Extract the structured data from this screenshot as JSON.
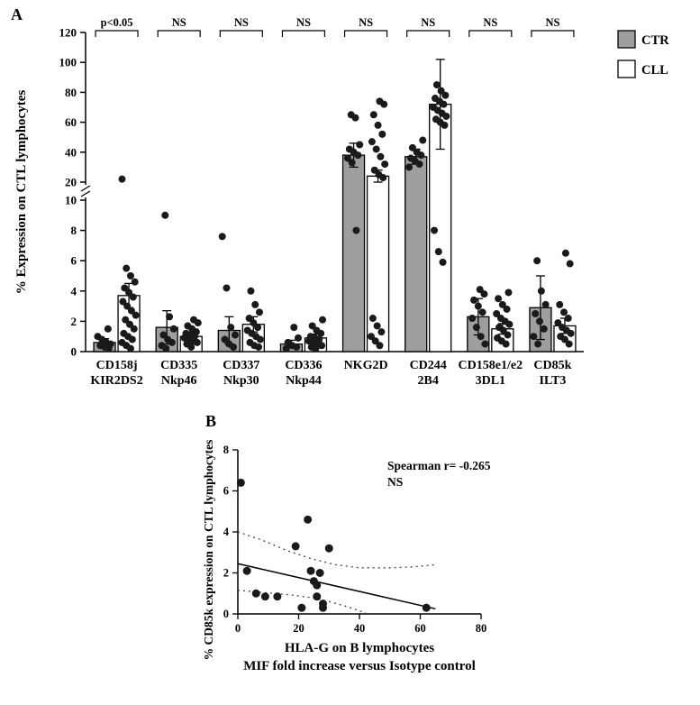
{
  "figure": {
    "panel_a_label": "A",
    "panel_b_label": "B"
  },
  "colors": {
    "ctr_fill": "#9e9e9e",
    "cll_fill": "#ffffff",
    "bar_stroke": "#000000",
    "dot_color": "#1a1a1a",
    "axis_color": "#000000",
    "ci_color": "#444444"
  },
  "chart_data": [
    {
      "id": "panelA",
      "type": "bar",
      "title": "",
      "ylabel": "% Expression on CTL lymphocytes",
      "axis_break": {
        "lower": [
          0,
          10
        ],
        "upper": [
          20,
          120
        ]
      },
      "yticks_lower": [
        0,
        2,
        4,
        6,
        8,
        10
      ],
      "yticks_upper": [
        20,
        40,
        60,
        80,
        100,
        120
      ],
      "legend": [
        {
          "label": "CTR",
          "fill": "#9e9e9e"
        },
        {
          "label": "CLL",
          "fill": "#ffffff"
        }
      ],
      "categories": [
        [
          "CD158j",
          "KIR2DS2"
        ],
        [
          "CD335",
          "Nkp46"
        ],
        [
          "CD337",
          "Nkp30"
        ],
        [
          "CD336",
          "Nkp44"
        ],
        [
          "NKG2D",
          ""
        ],
        [
          "CD244",
          "2B4"
        ],
        [
          "CD158e1/e2",
          "3DL1"
        ],
        [
          "CD85k",
          "ILT3"
        ]
      ],
      "significance": [
        "p<0.05",
        "NS",
        "NS",
        "NS",
        "NS",
        "NS",
        "NS",
        "NS"
      ],
      "series": [
        {
          "name": "CTR",
          "values": [
            0.6,
            1.6,
            1.4,
            0.5,
            38,
            37,
            2.3,
            2.9
          ],
          "errors": [
            0.25,
            1.1,
            0.9,
            0.25,
            8,
            5,
            1.2,
            2.1
          ],
          "dots": [
            [
              1.5,
              1.0,
              0.8,
              0.6,
              0.5,
              0.4,
              0.3,
              0.2
            ],
            [
              9.0,
              2.3,
              1.5,
              1.1,
              0.8,
              0.6,
              0.4,
              0.2
            ],
            [
              7.6,
              4.2,
              1.6,
              1.1,
              0.8,
              0.5,
              0.3
            ],
            [
              1.6,
              0.9,
              0.6,
              0.4,
              0.3,
              0.2
            ],
            [
              65,
              63,
              45,
              42,
              40,
              38,
              36,
              33,
              8
            ],
            [
              48,
              43,
              40,
              38,
              36,
              34,
              32,
              30
            ],
            [
              4.1,
              3.8,
              3.4,
              3.0,
              2.6,
              2.2,
              1.6,
              1.0,
              0.5
            ],
            [
              6.0,
              4.0,
              3.1,
              2.5,
              2.0,
              1.5,
              1.0,
              0.5
            ]
          ]
        },
        {
          "name": "CLL",
          "values": [
            3.7,
            1.0,
            1.8,
            0.9,
            24,
            72,
            1.5,
            1.7
          ],
          "errors": [
            0.8,
            0.25,
            0.5,
            0.25,
            4,
            30,
            0.35,
            0.5
          ],
          "dots": [
            [
              22,
              5.5,
              5.0,
              4.6,
              4.2,
              3.9,
              3.6,
              3.3,
              3.0,
              2.7,
              2.4,
              2.1,
              1.8,
              1.5,
              1.2,
              1.0,
              0.8,
              0.6,
              0.4,
              0.2
            ],
            [
              2.1,
              1.9,
              1.7,
              1.5,
              1.3,
              1.2,
              1.1,
              1.0,
              0.9,
              0.8,
              0.7,
              0.6,
              0.5,
              0.3
            ],
            [
              4.0,
              3.1,
              2.6,
              2.2,
              1.9,
              1.6,
              1.4,
              1.2,
              1.0,
              0.8,
              0.6,
              0.4,
              0.3
            ],
            [
              2.1,
              1.7,
              1.4,
              1.2,
              1.0,
              0.9,
              0.8,
              0.7,
              0.6,
              0.5,
              0.4,
              0.3,
              0.2
            ],
            [
              74,
              72,
              65,
              58,
              52,
              47,
              42,
              37,
              32,
              28,
              25,
              23,
              2.2,
              1.7,
              1.3,
              1.0,
              0.7,
              0.4
            ],
            [
              85,
              81,
              78,
              76,
              74,
              72,
              70,
              68,
              66,
              64,
              62,
              60,
              58,
              8.0,
              6.6,
              5.9
            ],
            [
              3.9,
              3.5,
              3.1,
              2.8,
              2.5,
              2.2,
              2.0,
              1.8,
              1.6,
              1.4,
              1.1,
              0.9,
              0.7,
              0.5
            ],
            [
              6.5,
              5.8,
              3.1,
              2.6,
              2.2,
              1.9,
              1.6,
              1.4,
              1.2,
              1.0,
              0.8,
              0.5
            ]
          ]
        }
      ]
    },
    {
      "id": "panelB",
      "type": "scatter",
      "xlabel_line1": "HLA-G on B lymphocytes",
      "xlabel_line2": "MIF fold increase versus Isotype control",
      "ylabel": "% CD85k expression on CTL lymphocytes",
      "annotation_line1": "Spearman r= -0.265",
      "annotation_line2": "NS",
      "xlim": [
        0,
        80
      ],
      "ylim": [
        0,
        8
      ],
      "xticks": [
        0,
        20,
        40,
        60,
        80
      ],
      "yticks": [
        0,
        2,
        4,
        6,
        8
      ],
      "points": [
        [
          1,
          6.4
        ],
        [
          3,
          2.1
        ],
        [
          6,
          1.0
        ],
        [
          9,
          0.85
        ],
        [
          13,
          0.85
        ],
        [
          19,
          3.3
        ],
        [
          21,
          0.3
        ],
        [
          23,
          4.6
        ],
        [
          24,
          2.1
        ],
        [
          25,
          1.6
        ],
        [
          26,
          1.4
        ],
        [
          26,
          0.85
        ],
        [
          27,
          2.0
        ],
        [
          28,
          0.5
        ],
        [
          28,
          0.3
        ],
        [
          30,
          3.2
        ],
        [
          62,
          0.3
        ]
      ],
      "regression": {
        "x1": 0,
        "y1": 2.45,
        "x2": 65,
        "y2": 0.25
      },
      "ci_upper": [
        [
          0,
          4.0
        ],
        [
          8,
          3.6
        ],
        [
          16,
          3.1
        ],
        [
          24,
          2.7
        ],
        [
          32,
          2.4
        ],
        [
          40,
          2.25
        ],
        [
          50,
          2.25
        ],
        [
          58,
          2.3
        ],
        [
          65,
          2.4
        ]
      ],
      "ci_lower": [
        [
          0,
          1.15
        ],
        [
          8,
          1.05
        ],
        [
          16,
          0.95
        ],
        [
          24,
          0.8
        ],
        [
          30,
          0.6
        ],
        [
          36,
          0.35
        ],
        [
          42,
          0.05
        ]
      ]
    }
  ]
}
